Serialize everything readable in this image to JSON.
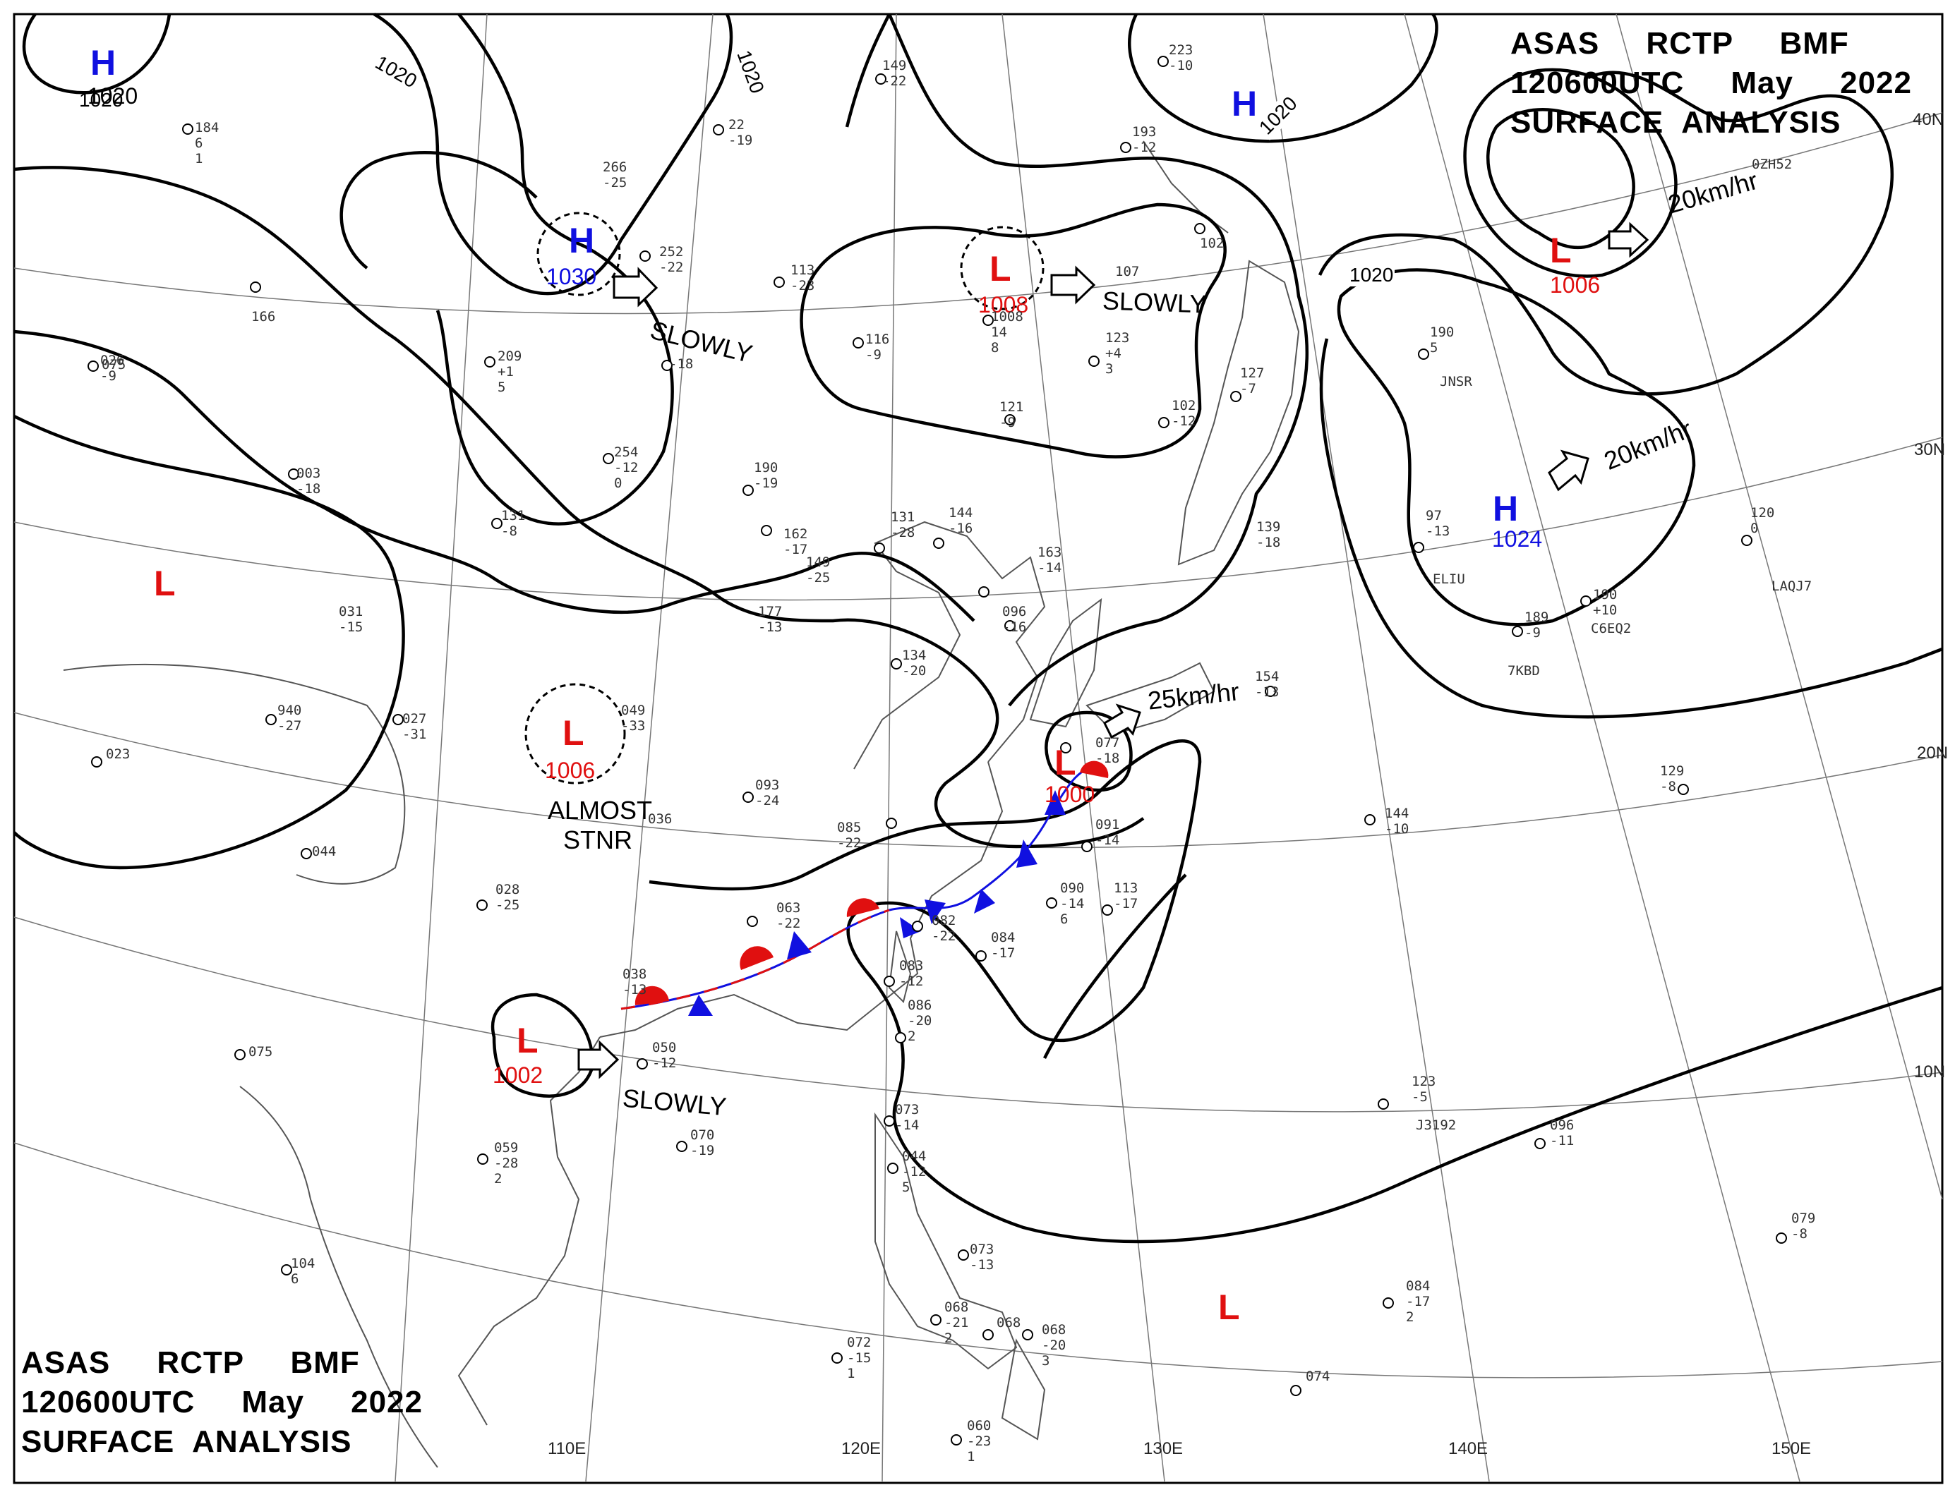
{
  "header": {
    "line1": "ASAS     RCTP     BMF",
    "line2": "120600UTC     May     2022",
    "line3": "SURFACE  ANALYSIS"
  },
  "footer": {
    "line1": "ASAS     RCTP     BMF",
    "line2": "120600UTC     May     2022",
    "line3": "SURFACE  ANALYSIS"
  },
  "colors": {
    "high": "#1010e0",
    "low": "#e01010",
    "cold_front": "#1010e0",
    "warm_front": "#e01010",
    "isobar": "#000000",
    "coast": "#555555",
    "grid": "#777777"
  },
  "pressure_systems": [
    {
      "type": "H",
      "pressure": "1020"
    },
    {
      "type": "H",
      "pressure": "1030"
    },
    {
      "type": "H",
      "pressure": ""
    },
    {
      "type": "L",
      "pressure": "1008"
    },
    {
      "type": "L",
      "pressure": "1006"
    },
    {
      "type": "L",
      "pressure": ""
    },
    {
      "type": "L",
      "pressure": "1006"
    },
    {
      "type": "L",
      "pressure": "1000"
    },
    {
      "type": "H",
      "pressure": "1024"
    },
    {
      "type": "L",
      "pressure": "1002"
    },
    {
      "type": "L",
      "pressure": ""
    }
  ],
  "movements": [
    "SLOWLY",
    "SLOWLY",
    "20km/hr",
    "20km/hr",
    "ALMOST",
    "STNR",
    "25km/hr",
    "SLOWLY"
  ],
  "isobar_labels": [
    "1020",
    "1020",
    "1020",
    "1020",
    "1020"
  ],
  "latitude_labels": [
    "40N",
    "30N",
    "20N",
    "10N"
  ],
  "longitude_labels": [
    "110E",
    "120E",
    "130E",
    "140E",
    "150E"
  ],
  "station_reports": [
    {
      "values": [
        "184",
        "6",
        "1"
      ]
    },
    {
      "values": [
        "266",
        "-25"
      ]
    },
    {
      "values": [
        "22",
        "-19"
      ]
    },
    {
      "values": [
        "149",
        "-22"
      ]
    },
    {
      "values": [
        "223",
        "-10"
      ]
    },
    {
      "values": [
        "193",
        "-12"
      ]
    },
    {
      "values": [
        "252",
        "-22"
      ]
    },
    {
      "values": [
        "113",
        "-23"
      ]
    },
    {
      "values": [
        "107"
      ]
    },
    {
      "values": [
        "102"
      ]
    },
    {
      "values": [
        "166"
      ]
    },
    {
      "values": [
        "075"
      ]
    },
    {
      "values": [
        "026",
        "-9"
      ]
    },
    {
      "values": [
        "209",
        "+1",
        "5"
      ]
    },
    {
      "values": [
        "-18"
      ]
    },
    {
      "values": [
        "116",
        "-9"
      ]
    },
    {
      "values": [
        "1008",
        "14",
        "8"
      ]
    },
    {
      "values": [
        "123",
        "+4",
        "3"
      ]
    },
    {
      "values": [
        "127",
        "-7"
      ]
    },
    {
      "values": [
        "102",
        "-12"
      ]
    },
    {
      "values": [
        "190",
        "5"
      ]
    },
    {
      "values": [
        "JNSR"
      ]
    },
    {
      "values": [
        "254",
        "-12",
        "0"
      ]
    },
    {
      "values": [
        "190",
        "-19"
      ]
    },
    {
      "values": [
        "121",
        "-9"
      ]
    },
    {
      "values": [
        "003",
        "-18"
      ]
    },
    {
      "values": [
        "131",
        "-8"
      ]
    },
    {
      "values": [
        "131",
        "-28"
      ]
    },
    {
      "values": [
        "144",
        "-16"
      ]
    },
    {
      "values": [
        "162",
        "-17"
      ]
    },
    {
      "values": [
        "149",
        "-25"
      ]
    },
    {
      "values": [
        "163",
        "-14"
      ]
    },
    {
      "values": [
        "139",
        "-18"
      ]
    },
    {
      "values": [
        "97",
        "-13"
      ]
    },
    {
      "values": [
        "ELIU"
      ]
    },
    {
      "values": [
        "120",
        "0"
      ]
    },
    {
      "values": [
        "LAQJ7"
      ]
    },
    {
      "values": [
        "031",
        "-15"
      ]
    },
    {
      "values": [
        "177",
        "-13"
      ]
    },
    {
      "values": [
        "096",
        "-16"
      ]
    },
    {
      "values": [
        "190",
        "+10"
      ]
    },
    {
      "values": [
        "C6EQ2"
      ]
    },
    {
      "values": [
        "189",
        "-9"
      ]
    },
    {
      "values": [
        "7KBD"
      ]
    },
    {
      "values": [
        "134",
        "-20"
      ]
    },
    {
      "values": [
        "940",
        "-27"
      ]
    },
    {
      "values": [
        "027",
        "-31"
      ]
    },
    {
      "values": [
        "049",
        "-33"
      ]
    },
    {
      "values": [
        "154",
        "-13"
      ]
    },
    {
      "values": [
        "023"
      ]
    },
    {
      "values": [
        "093",
        "-24"
      ]
    },
    {
      "values": [
        "077",
        "-18"
      ]
    },
    {
      "values": [
        "036"
      ]
    },
    {
      "values": [
        "085",
        "-22"
      ]
    },
    {
      "values": [
        "091",
        "-14"
      ]
    },
    {
      "values": [
        "129",
        "-8"
      ]
    },
    {
      "values": [
        "144",
        "-10"
      ]
    },
    {
      "values": [
        "044"
      ]
    },
    {
      "values": [
        "028",
        "-25"
      ]
    },
    {
      "values": [
        "063",
        "-22"
      ]
    },
    {
      "values": [
        "082",
        "-22"
      ]
    },
    {
      "values": [
        "090",
        "-14",
        "6"
      ]
    },
    {
      "values": [
        "113",
        "-17"
      ]
    },
    {
      "values": [
        "038",
        "-13"
      ]
    },
    {
      "values": [
        "083",
        "-12"
      ]
    },
    {
      "values": [
        "084",
        "-17"
      ]
    },
    {
      "values": [
        "086",
        "-20",
        "2"
      ]
    },
    {
      "values": [
        "075"
      ]
    },
    {
      "values": [
        "050",
        "-12"
      ]
    },
    {
      "values": [
        "123",
        "-5"
      ]
    },
    {
      "values": [
        "J3192"
      ]
    },
    {
      "values": [
        "073",
        "-14"
      ]
    },
    {
      "values": [
        "096",
        "-11"
      ]
    },
    {
      "values": [
        "070",
        "-19"
      ]
    },
    {
      "values": [
        "059",
        "-28",
        "2"
      ]
    },
    {
      "values": [
        "044",
        "-12",
        "5"
      ]
    },
    {
      "values": [
        "079",
        "-8"
      ]
    },
    {
      "values": [
        "104",
        "6"
      ]
    },
    {
      "values": [
        "073",
        "-13"
      ]
    },
    {
      "values": [
        "084",
        "-17",
        "2"
      ]
    },
    {
      "values": [
        "068",
        "-21",
        "2"
      ]
    },
    {
      "values": [
        "068"
      ]
    },
    {
      "values": [
        "068",
        "-20",
        "3"
      ]
    },
    {
      "values": [
        "072",
        "-15",
        "1"
      ]
    },
    {
      "values": [
        "074"
      ]
    },
    {
      "values": [
        "060",
        "-23",
        "1"
      ]
    },
    {
      "values": [
        "0ZH52"
      ]
    }
  ]
}
